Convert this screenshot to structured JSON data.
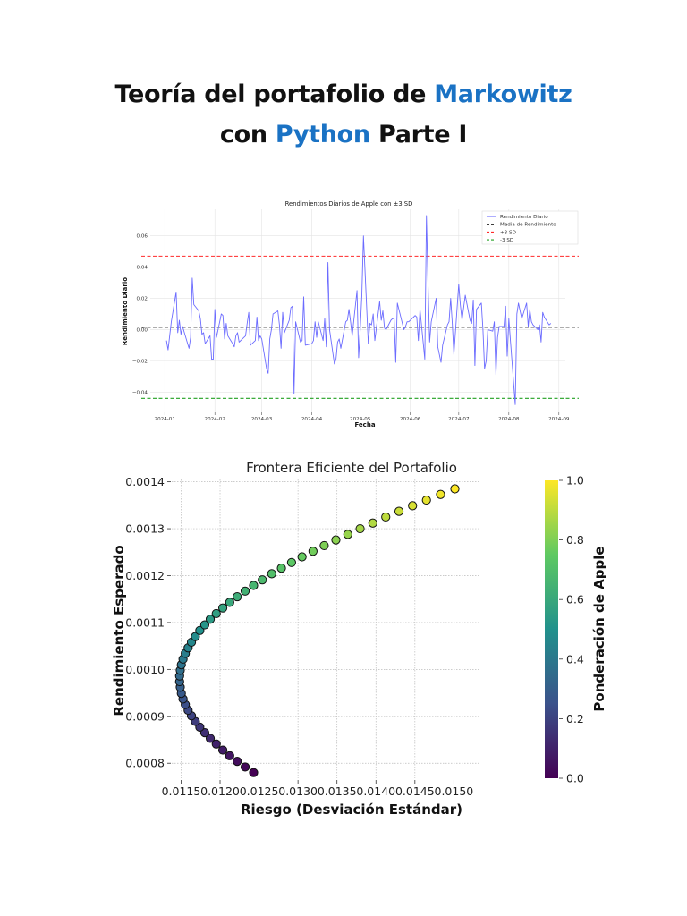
{
  "document": {
    "title_line1_a": "Teoría del portafolio de ",
    "title_line1_b": "Markowitz",
    "title_line2_a": "con ",
    "title_line2_b": "Python",
    "title_line2_c": " Parte I",
    "accent_color": "#1a72c4"
  },
  "chart_data": [
    {
      "type": "line",
      "title": "Rendimientos Diarios de Apple con ±3 SD",
      "xlabel": "Fecha",
      "ylabel": "Rendimiento Diario",
      "x_ticks": [
        "2024-01",
        "2024-02",
        "2024-03",
        "2024-04",
        "2024-05",
        "2024-06",
        "2024-07",
        "2024-08",
        "2024-09"
      ],
      "y_ticks": [
        "−0.04",
        "−0.02",
        "0.00",
        "0.02",
        "0.04",
        "0.06"
      ],
      "y_tick_values": [
        -0.04,
        -0.02,
        0.0,
        0.02,
        0.04,
        0.06
      ],
      "xlim": [
        "2023-12-23",
        "2024-09-05"
      ],
      "ylim": [
        -0.053,
        0.077
      ],
      "grid": true,
      "legend_position": "top-right",
      "legend": [
        "Rendimiento Diario",
        "Media de Rendimiento",
        "+3 SD",
        "-3 SD"
      ],
      "hlines": [
        {
          "name": "Media de Rendimiento",
          "value": 0.0015,
          "color": "#222222"
        },
        {
          "name": "+3 SD",
          "value": 0.047,
          "color": "#ff2a2a"
        },
        {
          "name": "-3 SD",
          "value": -0.044,
          "color": "#22a022"
        }
      ],
      "series": [
        {
          "name": "Rendimiento Diario",
          "color": "#6b6bff",
          "points": [
            [
              "2024-01-02",
              -0.007
            ],
            [
              "2024-01-03",
              -0.013
            ],
            [
              "2024-01-04",
              -0.004
            ],
            [
              "2024-01-05",
              0.005
            ],
            [
              "2024-01-08",
              0.024
            ],
            [
              "2024-01-09",
              -0.002
            ],
            [
              "2024-01-10",
              0.006
            ],
            [
              "2024-01-11",
              -0.003
            ],
            [
              "2024-01-12",
              0.002
            ],
            [
              "2024-01-16",
              -0.012
            ],
            [
              "2024-01-17",
              -0.005
            ],
            [
              "2024-01-18",
              0.033
            ],
            [
              "2024-01-19",
              0.016
            ],
            [
              "2024-01-22",
              0.012
            ],
            [
              "2024-01-23",
              0.007
            ],
            [
              "2024-01-24",
              -0.003
            ],
            [
              "2024-01-25",
              -0.002
            ],
            [
              "2024-01-26",
              -0.009
            ],
            [
              "2024-01-29",
              -0.004
            ],
            [
              "2024-01-30",
              -0.019
            ],
            [
              "2024-01-31",
              -0.019
            ],
            [
              "2024-02-01",
              0.013
            ],
            [
              "2024-02-02",
              -0.005
            ],
            [
              "2024-02-05",
              0.01
            ],
            [
              "2024-02-06",
              0.009
            ],
            [
              "2024-02-07",
              -0.006
            ],
            [
              "2024-02-08",
              0.004
            ],
            [
              "2024-02-09",
              -0.004
            ],
            [
              "2024-02-12",
              -0.009
            ],
            [
              "2024-02-13",
              -0.011
            ],
            [
              "2024-02-14",
              -0.004
            ],
            [
              "2024-02-15",
              -0.002
            ],
            [
              "2024-02-16",
              -0.008
            ],
            [
              "2024-02-20",
              -0.004
            ],
            [
              "2024-02-21",
              0.004
            ],
            [
              "2024-02-22",
              0.011
            ],
            [
              "2024-02-23",
              -0.01
            ],
            [
              "2024-02-26",
              -0.007
            ],
            [
              "2024-02-27",
              0.008
            ],
            [
              "2024-02-28",
              -0.007
            ],
            [
              "2024-02-29",
              -0.004
            ],
            [
              "2024-03-01",
              -0.006
            ],
            [
              "2024-03-04",
              -0.025
            ],
            [
              "2024-03-05",
              -0.028
            ],
            [
              "2024-03-06",
              -0.006
            ],
            [
              "2024-03-07",
              0.0
            ],
            [
              "2024-03-08",
              0.01
            ],
            [
              "2024-03-11",
              0.012
            ],
            [
              "2024-03-12",
              0.003
            ],
            [
              "2024-03-13",
              -0.012
            ],
            [
              "2024-03-14",
              0.011
            ],
            [
              "2024-03-15",
              -0.002
            ],
            [
              "2024-03-18",
              0.006
            ],
            [
              "2024-03-19",
              0.014
            ],
            [
              "2024-03-20",
              0.015
            ],
            [
              "2024-03-21",
              -0.041
            ],
            [
              "2024-03-22",
              0.005
            ],
            [
              "2024-03-25",
              -0.008
            ],
            [
              "2024-03-26",
              -0.007
            ],
            [
              "2024-03-27",
              0.021
            ],
            [
              "2024-03-28",
              -0.01
            ],
            [
              "2024-04-01",
              -0.009
            ],
            [
              "2024-04-02",
              -0.007
            ],
            [
              "2024-04-03",
              0.005
            ],
            [
              "2024-04-04",
              -0.005
            ],
            [
              "2024-04-05",
              0.005
            ],
            [
              "2024-04-08",
              -0.007
            ],
            [
              "2024-04-09",
              0.007
            ],
            [
              "2024-04-10",
              -0.011
            ],
            [
              "2024-04-11",
              0.043
            ],
            [
              "2024-04-12",
              0.0
            ],
            [
              "2024-04-15",
              -0.022
            ],
            [
              "2024-04-16",
              -0.019
            ],
            [
              "2024-04-17",
              -0.008
            ],
            [
              "2024-04-18",
              -0.006
            ],
            [
              "2024-04-19",
              -0.012
            ],
            [
              "2024-04-22",
              0.005
            ],
            [
              "2024-04-23",
              0.006
            ],
            [
              "2024-04-24",
              0.013
            ],
            [
              "2024-04-25",
              0.005
            ],
            [
              "2024-04-26",
              -0.004
            ],
            [
              "2024-04-29",
              0.025
            ],
            [
              "2024-04-30",
              -0.018
            ],
            [
              "2024-05-01",
              0.0
            ],
            [
              "2024-05-02",
              0.022
            ],
            [
              "2024-05-03",
              0.06
            ],
            [
              "2024-05-06",
              -0.009
            ],
            [
              "2024-05-07",
              0.004
            ],
            [
              "2024-05-08",
              0.003
            ],
            [
              "2024-05-09",
              0.01
            ],
            [
              "2024-05-10",
              -0.007
            ],
            [
              "2024-05-13",
              0.018
            ],
            [
              "2024-05-14",
              0.006
            ],
            [
              "2024-05-15",
              0.012
            ],
            [
              "2024-05-16",
              0.001
            ],
            [
              "2024-05-17",
              0.0
            ],
            [
              "2024-05-20",
              0.006
            ],
            [
              "2024-05-21",
              0.007
            ],
            [
              "2024-05-22",
              0.007
            ],
            [
              "2024-05-23",
              -0.021
            ],
            [
              "2024-05-24",
              0.017
            ],
            [
              "2024-05-28",
              0.0
            ],
            [
              "2024-05-29",
              0.002
            ],
            [
              "2024-05-30",
              0.005
            ],
            [
              "2024-05-31",
              0.005
            ],
            [
              "2024-06-03",
              0.008
            ],
            [
              "2024-06-04",
              0.009
            ],
            [
              "2024-06-05",
              0.008
            ],
            [
              "2024-06-06",
              -0.007
            ],
            [
              "2024-06-07",
              0.013
            ],
            [
              "2024-06-10",
              -0.019
            ],
            [
              "2024-06-11",
              0.073
            ],
            [
              "2024-06-12",
              0.029
            ],
            [
              "2024-06-13",
              -0.008
            ],
            [
              "2024-06-14",
              0.005
            ],
            [
              "2024-06-17",
              0.02
            ],
            [
              "2024-06-18",
              -0.011
            ],
            [
              "2024-06-20",
              -0.021
            ],
            [
              "2024-06-21",
              -0.01
            ],
            [
              "2024-06-24",
              0.003
            ],
            [
              "2024-06-25",
              0.005
            ],
            [
              "2024-06-26",
              0.02
            ],
            [
              "2024-06-27",
              0.004
            ],
            [
              "2024-06-28",
              -0.016
            ],
            [
              "2024-07-01",
              0.029
            ],
            [
              "2024-07-02",
              0.016
            ],
            [
              "2024-07-03",
              0.006
            ],
            [
              "2024-07-05",
              0.022
            ],
            [
              "2024-07-08",
              0.006
            ],
            [
              "2024-07-09",
              0.004
            ],
            [
              "2024-07-10",
              0.019
            ],
            [
              "2024-07-11",
              -0.023
            ],
            [
              "2024-07-12",
              0.013
            ],
            [
              "2024-07-15",
              0.017
            ],
            [
              "2024-07-16",
              0.0
            ],
            [
              "2024-07-17",
              -0.025
            ],
            [
              "2024-07-18",
              -0.02
            ],
            [
              "2024-07-19",
              0.0
            ],
            [
              "2024-07-22",
              -0.001
            ],
            [
              "2024-07-23",
              0.005
            ],
            [
              "2024-07-24",
              -0.029
            ],
            [
              "2024-07-25",
              -0.005
            ],
            [
              "2024-07-26",
              0.002
            ],
            [
              "2024-07-29",
              0.002
            ],
            [
              "2024-07-30",
              0.015
            ],
            [
              "2024-07-31",
              -0.017
            ],
            [
              "2024-08-01",
              0.007
            ],
            [
              "2024-08-02",
              -0.007
            ],
            [
              "2024-08-05",
              -0.048
            ],
            [
              "2024-08-06",
              0.01
            ],
            [
              "2024-08-07",
              0.017
            ],
            [
              "2024-08-08",
              0.012
            ],
            [
              "2024-08-09",
              0.007
            ],
            [
              "2024-08-12",
              0.017
            ],
            [
              "2024-08-13",
              0.002
            ],
            [
              "2024-08-14",
              0.013
            ],
            [
              "2024-08-15",
              0.005
            ],
            [
              "2024-08-16",
              0.003
            ],
            [
              "2024-08-19",
              0.0
            ],
            [
              "2024-08-20",
              0.003
            ],
            [
              "2024-08-21",
              -0.008
            ],
            [
              "2024-08-22",
              0.011
            ],
            [
              "2024-08-23",
              0.008
            ],
            [
              "2024-08-26",
              0.003
            ],
            [
              "2024-08-27",
              0.004
            ]
          ]
        }
      ]
    },
    {
      "type": "scatter",
      "title": "Frontera Eficiente del Portafolio",
      "xlabel": "Riesgo (Desviación Estándar)",
      "ylabel": "Rendimiento Esperado",
      "colorbar_label": "Ponderación de Apple",
      "colormap": "viridis",
      "x_ticks": [
        "0.0115",
        "0.0120",
        "0.0125",
        "0.0130",
        "0.0135",
        "0.0140",
        "0.0145",
        "0.0150"
      ],
      "y_ticks": [
        "0.0008",
        "0.0009",
        "0.0010",
        "0.0011",
        "0.0012",
        "0.0013",
        "0.0014"
      ],
      "colorbar_ticks": [
        "0.0",
        "0.2",
        "0.4",
        "0.6",
        "0.8",
        "1.0"
      ],
      "xlim": [
        0.01138,
        0.01534
      ],
      "ylim": [
        0.000768,
        0.001405
      ],
      "grid": true,
      "columns": [
        "weight_apple",
        "risk",
        "return"
      ],
      "points": [
        [
          0.0,
          0.01243,
          0.00078
        ],
        [
          0.02,
          0.012322,
          0.000792
        ],
        [
          0.04,
          0.01222,
          0.000804
        ],
        [
          0.06,
          0.012124,
          0.000816
        ],
        [
          0.08,
          0.012035,
          0.000828
        ],
        [
          0.1,
          0.011951,
          0.000841
        ],
        [
          0.12,
          0.011874,
          0.000853
        ],
        [
          0.14,
          0.011804,
          0.000865
        ],
        [
          0.16,
          0.01174,
          0.000877
        ],
        [
          0.18,
          0.011683,
          0.000889
        ],
        [
          0.2,
          0.011633,
          0.000901
        ],
        [
          0.22,
          0.01159,
          0.000913
        ],
        [
          0.24,
          0.011554,
          0.000925
        ],
        [
          0.26,
          0.011525,
          0.000937
        ],
        [
          0.28,
          0.011503,
          0.000949
        ],
        [
          0.3,
          0.011489,
          0.000962
        ],
        [
          0.32,
          0.011481,
          0.000974
        ],
        [
          0.34,
          0.011481,
          0.000986
        ],
        [
          0.36,
          0.011489,
          0.000998
        ],
        [
          0.38,
          0.011503,
          0.00101
        ],
        [
          0.4,
          0.011525,
          0.001022
        ],
        [
          0.42,
          0.011554,
          0.001034
        ],
        [
          0.44,
          0.01159,
          0.001046
        ],
        [
          0.46,
          0.011633,
          0.001058
        ],
        [
          0.48,
          0.011683,
          0.00107
        ],
        [
          0.5,
          0.01174,
          0.001083
        ],
        [
          0.52,
          0.011804,
          0.001095
        ],
        [
          0.54,
          0.011874,
          0.001107
        ],
        [
          0.56,
          0.011951,
          0.001119
        ],
        [
          0.58,
          0.012035,
          0.001131
        ],
        [
          0.6,
          0.012124,
          0.001143
        ],
        [
          0.62,
          0.01222,
          0.001155
        ],
        [
          0.64,
          0.012322,
          0.001167
        ],
        [
          0.66,
          0.01243,
          0.001179
        ],
        [
          0.68,
          0.012542,
          0.001191
        ],
        [
          0.7,
          0.012663,
          0.001204
        ],
        [
          0.72,
          0.012787,
          0.001216
        ],
        [
          0.74,
          0.012917,
          0.001228
        ],
        [
          0.76,
          0.013052,
          0.00124
        ],
        [
          0.78,
          0.013192,
          0.001252
        ],
        [
          0.8,
          0.013336,
          0.001264
        ],
        [
          0.82,
          0.013486,
          0.001276
        ],
        [
          0.84,
          0.013639,
          0.001288
        ],
        [
          0.86,
          0.013797,
          0.0013
        ],
        [
          0.88,
          0.01396,
          0.001312
        ],
        [
          0.9,
          0.014126,
          0.001325
        ],
        [
          0.92,
          0.014296,
          0.001337
        ],
        [
          0.94,
          0.01447,
          0.001349
        ],
        [
          0.96,
          0.014648,
          0.001361
        ],
        [
          0.98,
          0.014829,
          0.001373
        ],
        [
          1.0,
          0.015013,
          0.001385
        ]
      ]
    }
  ]
}
